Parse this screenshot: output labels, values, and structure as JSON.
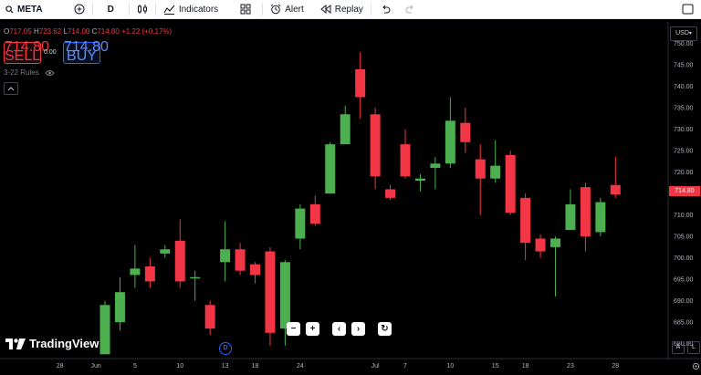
{
  "toolbar": {
    "symbol": "META",
    "interval": "D",
    "indicators_label": "Indicators",
    "alert_label": "Alert",
    "replay_label": "Replay"
  },
  "legend": {
    "o_key": "O",
    "o_val": "717.05",
    "h_key": "H",
    "h_val": "723.62",
    "l_key": "L",
    "l_val": "714.00",
    "c_key": "C",
    "c_val": "714.80",
    "change": "+1.22 (+0.17%)"
  },
  "trade": {
    "sell_price": "714.80",
    "sell_label": "SELL",
    "spread": "0.00",
    "buy_price": "714.80",
    "buy_label": "BUY"
  },
  "rules_label": "3-22 Rules",
  "currency": "USD",
  "last_price": "714.80",
  "logo_text": "TradingView",
  "interval_badge": "D",
  "corner_a": "A",
  "corner_l": "L",
  "colors": {
    "up": "#4caf50",
    "down": "#f23645",
    "bg": "#000000"
  },
  "chart_data": {
    "type": "candlestick",
    "y_ticks": [
      750,
      745,
      740,
      735,
      730,
      725,
      720,
      715,
      710,
      705,
      700,
      695,
      690,
      685,
      680
    ],
    "y_tick_labels": [
      "750.00",
      "745.00",
      "740.00",
      "735.00",
      "730.00",
      "725.00",
      "720.00",
      "715.00",
      "710.00",
      "705.00",
      "700.00",
      "695.00",
      "690.00",
      "685.00",
      "680.00"
    ],
    "ylim": [
      676.5,
      752.5
    ],
    "x_ticks": [
      {
        "label": "28",
        "i": -3
      },
      {
        "label": "Jun",
        "i": -0.6
      },
      {
        "label": "5",
        "i": 2
      },
      {
        "label": "10",
        "i": 5
      },
      {
        "label": "13",
        "i": 8
      },
      {
        "label": "18",
        "i": 10
      },
      {
        "label": "24",
        "i": 13
      },
      {
        "label": "Jul",
        "i": 18
      },
      {
        "label": "7",
        "i": 20
      },
      {
        "label": "10",
        "i": 23
      },
      {
        "label": "15",
        "i": 26
      },
      {
        "label": "18",
        "i": 28
      },
      {
        "label": "23",
        "i": 31
      },
      {
        "label": "28",
        "i": 34
      }
    ],
    "candles": [
      {
        "o": 677.5,
        "h": 690.0,
        "l": 677.5,
        "c": 689.0
      },
      {
        "o": 685.0,
        "h": 695.5,
        "l": 683.0,
        "c": 692.0
      },
      {
        "o": 696.0,
        "h": 703.0,
        "l": 693.0,
        "c": 697.5
      },
      {
        "o": 698.0,
        "h": 700.0,
        "l": 693.0,
        "c": 694.5
      },
      {
        "o": 701.0,
        "h": 703.0,
        "l": 700.0,
        "c": 702.0
      },
      {
        "o": 704.0,
        "h": 709.0,
        "l": 693.0,
        "c": 694.5
      },
      {
        "o": 695.5,
        "h": 697.0,
        "l": 690.0,
        "c": 695.5
      },
      {
        "o": 689.0,
        "h": 690.0,
        "l": 682.0,
        "c": 683.5
      },
      {
        "o": 699.0,
        "h": 708.5,
        "l": 694.5,
        "c": 702.0
      },
      {
        "o": 702.0,
        "h": 703.5,
        "l": 696.0,
        "c": 697.0
      },
      {
        "o": 698.5,
        "h": 699.0,
        "l": 694.0,
        "c": 696.0
      },
      {
        "o": 701.5,
        "h": 702.5,
        "l": 679.5,
        "c": 682.5
      },
      {
        "o": 683.5,
        "h": 699.5,
        "l": 679.5,
        "c": 699.0
      },
      {
        "o": 704.5,
        "h": 712.5,
        "l": 702.0,
        "c": 711.5
      },
      {
        "o": 712.5,
        "h": 714.5,
        "l": 707.5,
        "c": 708.0
      },
      {
        "o": 715.0,
        "h": 727.0,
        "l": 715.0,
        "c": 726.5
      },
      {
        "o": 726.5,
        "h": 735.5,
        "l": 726.5,
        "c": 733.5
      },
      {
        "o": 744.0,
        "h": 748.0,
        "l": 732.5,
        "c": 737.5
      },
      {
        "o": 733.5,
        "h": 735.0,
        "l": 716.0,
        "c": 719.0
      },
      {
        "o": 716.0,
        "h": 717.0,
        "l": 713.5,
        "c": 714.0
      },
      {
        "o": 726.5,
        "h": 730.0,
        "l": 718.5,
        "c": 719.0
      },
      {
        "o": 718.0,
        "h": 719.5,
        "l": 715.5,
        "c": 718.5
      },
      {
        "o": 721.0,
        "h": 723.5,
        "l": 716.0,
        "c": 722.0
      },
      {
        "o": 722.0,
        "h": 737.5,
        "l": 721.0,
        "c": 732.0
      },
      {
        "o": 731.5,
        "h": 735.0,
        "l": 724.5,
        "c": 727.0
      },
      {
        "o": 723.0,
        "h": 726.5,
        "l": 710.0,
        "c": 718.5
      },
      {
        "o": 718.5,
        "h": 727.5,
        "l": 717.5,
        "c": 721.5
      },
      {
        "o": 724.0,
        "h": 725.0,
        "l": 710.0,
        "c": 710.5
      },
      {
        "o": 714.0,
        "h": 715.0,
        "l": 699.5,
        "c": 703.5
      },
      {
        "o": 704.5,
        "h": 705.5,
        "l": 700.0,
        "c": 701.5
      },
      {
        "o": 702.5,
        "h": 705.0,
        "l": 691.0,
        "c": 704.5
      },
      {
        "o": 706.5,
        "h": 716.0,
        "l": 706.5,
        "c": 712.5
      },
      {
        "o": 716.5,
        "h": 717.5,
        "l": 701.5,
        "c": 705.0
      },
      {
        "o": 706.0,
        "h": 714.0,
        "l": 705.0,
        "c": 713.0
      },
      {
        "o": 717.0,
        "h": 723.6,
        "l": 714.0,
        "c": 714.8
      }
    ]
  }
}
